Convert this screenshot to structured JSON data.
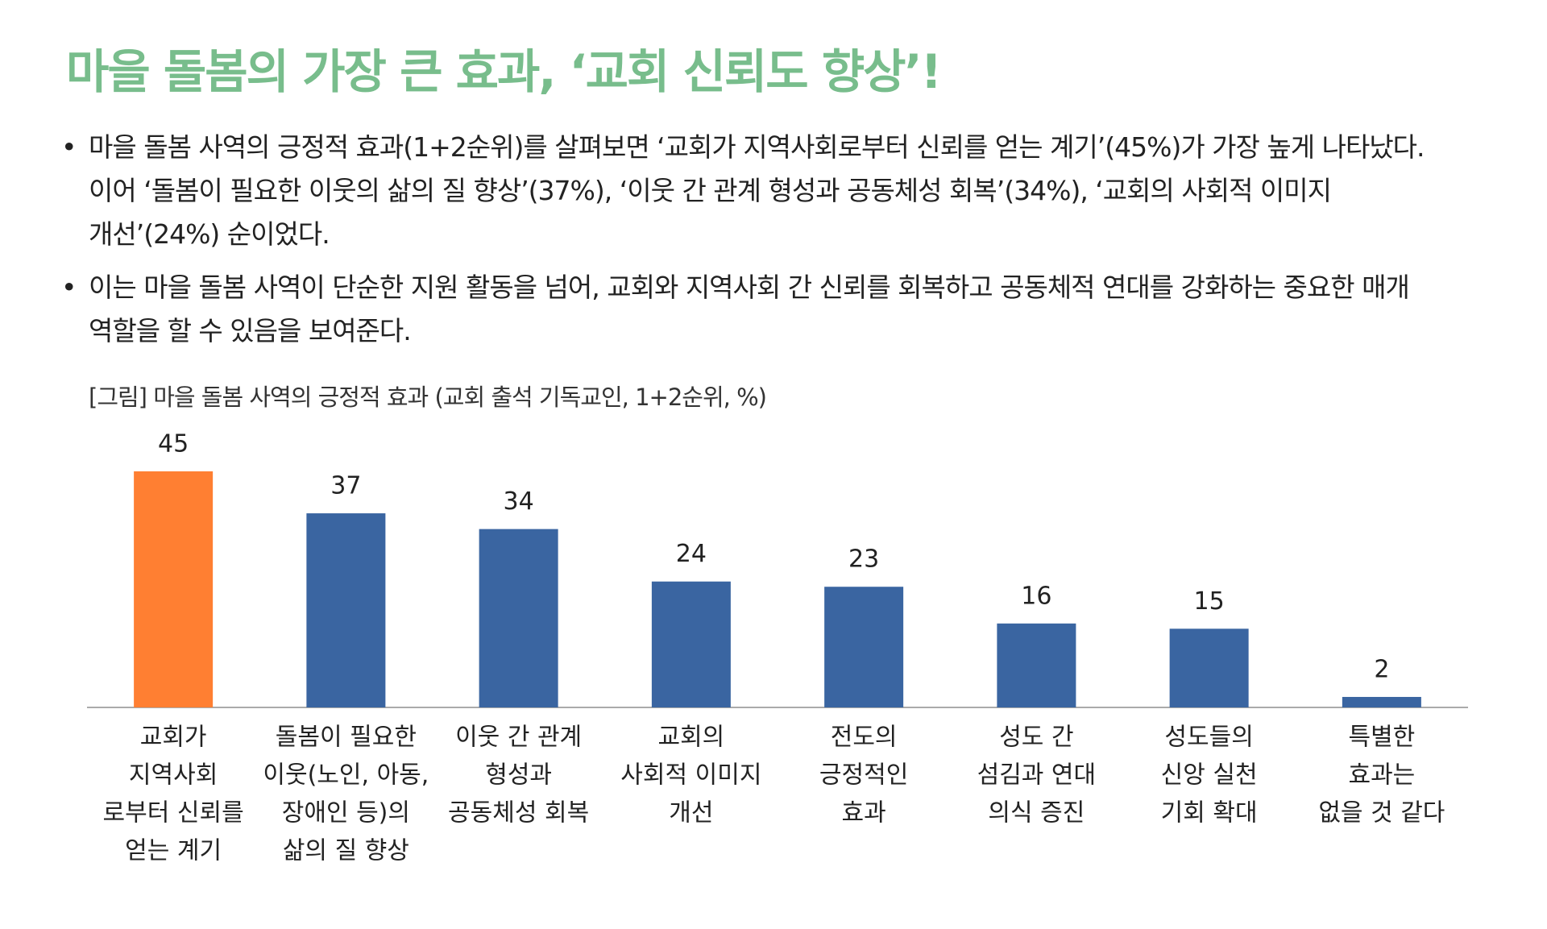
{
  "title": "마을 돌봄의 가장 큰 효과, ‘교회 신뢰도 향상’!",
  "bullets": [
    "마을 돌봄 사역의 긍정적 효과(1+2순위)를 살펴보면 ‘교회가 지역사회로부터 신뢰를 얻는 계기’(45%)가 가장 높게 나타났다. 이어 ‘돌봄이 필요한 이웃의 삶의 질 향상’(37%), ‘이웃 간 관계 형성과 공동체성 회복’(34%), ‘교회의 사회적 이미지 개선’(24%) 순이었다.",
    "이는 마을 돌봄 사역이 단순한 지원 활동을 넘어, 교회와 지역사회 간 신뢰를 회복하고 공동체적 연대를 강화하는 중요한 매개 역할을 할 수 있음을 보여준다."
  ],
  "chart_data": {
    "type": "bar",
    "title": "[그림] 마을 돌봄 사역의 긍정적 효과 (교회 출석 기독교인, 1+2순위, %)",
    "categories": [
      [
        "교회가",
        "지역사회",
        "로부터 신뢰를",
        "얻는 계기"
      ],
      [
        "돌봄이 필요한",
        "이웃(노인, 아동,",
        "장애인 등)의",
        "삶의 질 향상"
      ],
      [
        "이웃 간 관계",
        "형성과",
        "공동체성 회복"
      ],
      [
        "교회의",
        "사회적 이미지",
        "개선"
      ],
      [
        "전도의",
        "긍정적인",
        "효과"
      ],
      [
        "성도 간",
        "섬김과 연대",
        "의식 증진"
      ],
      [
        "성도들의",
        "신앙 실천",
        "기회 확대"
      ],
      [
        "특별한",
        "효과는",
        "없을 것 같다"
      ]
    ],
    "values": [
      45,
      37,
      34,
      24,
      23,
      16,
      15,
      2
    ],
    "colors": [
      "#ff7f32",
      "#3a65a1",
      "#3a65a1",
      "#3a65a1",
      "#3a65a1",
      "#3a65a1",
      "#3a65a1",
      "#3a65a1"
    ]
  }
}
